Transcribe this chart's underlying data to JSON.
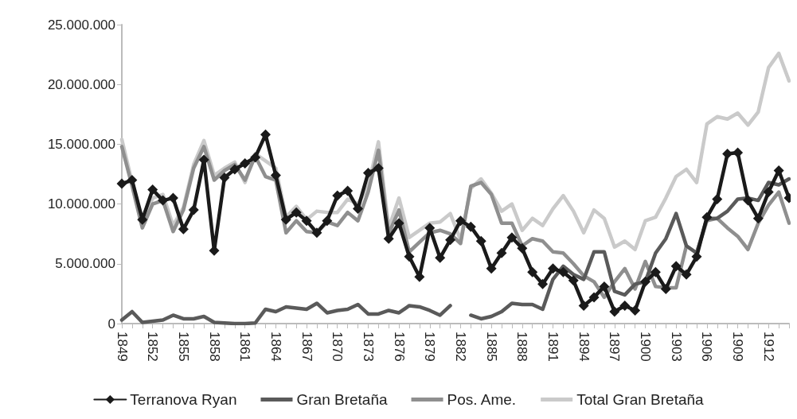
{
  "chart_data": {
    "type": "line",
    "categories": [
      "1849",
      null,
      null,
      "1852",
      null,
      null,
      "1855",
      null,
      null,
      "1858",
      null,
      null,
      "1861",
      null,
      null,
      "1864",
      null,
      null,
      "1867",
      null,
      null,
      "1870",
      null,
      null,
      "1873",
      null,
      null,
      "1876",
      null,
      null,
      "1879",
      null,
      null,
      "1882",
      null,
      null,
      "1885",
      null,
      null,
      "1888",
      null,
      null,
      "1891",
      null,
      null,
      "1894",
      null,
      null,
      "1897",
      null,
      null,
      "1900",
      null,
      null,
      "1903",
      null,
      null,
      "1906",
      null,
      null,
      "1909",
      null,
      null,
      "1912",
      null,
      null
    ],
    "ylim": [
      0,
      25000000
    ],
    "yticks": [
      0,
      {
        "value": 5000000,
        "label": "5.000.000"
      },
      {
        "value": 10000000,
        "label": "10.000.000"
      },
      {
        "value": 15000000,
        "label": "15.000.000"
      },
      {
        "value": 20000000,
        "label": "20.000.000"
      },
      {
        "value": 25000000,
        "label": "25.000.000"
      }
    ],
    "grid": false,
    "legend": "bottom",
    "line_style": "solid",
    "series": [
      {
        "name": "Terranova Ryan",
        "color": "#1a1a1a",
        "marker": "diamond",
        "values": [
          11700000,
          12000000,
          8700000,
          11200000,
          10300000,
          10500000,
          7900000,
          9500000,
          13700000,
          6100000,
          12200000,
          12900000,
          13400000,
          13900000,
          15800000,
          12400000,
          8700000,
          9300000,
          8600000,
          7600000,
          8600000,
          10700000,
          11100000,
          9600000,
          12600000,
          13000000,
          7100000,
          8400000,
          5600000,
          3900000,
          8000000,
          5500000,
          7000000,
          8600000,
          8100000,
          6900000,
          4600000,
          5900000,
          7200000,
          6300000,
          4300000,
          3300000,
          4600000,
          4300000,
          3600000,
          1500000,
          2200000,
          3100000,
          1000000,
          1500000,
          1100000,
          3500000,
          4300000,
          2900000,
          4800000,
          4100000,
          5600000,
          8900000,
          10400000,
          14200000,
          14300000,
          10300000,
          8800000,
          11000000,
          12800000,
          10500000
        ]
      },
      {
        "name": "Gran Bretaña",
        "color": "#5a5a5a",
        "marker": "none",
        "values": [
          300000,
          1000000,
          100000,
          200000,
          300000,
          700000,
          400000,
          400000,
          600000,
          100000,
          50000,
          0,
          0,
          50000,
          1200000,
          1000000,
          1400000,
          1300000,
          1200000,
          1700000,
          900000,
          1100000,
          1200000,
          1600000,
          800000,
          800000,
          1100000,
          900000,
          1500000,
          1400000,
          1100000,
          700000,
          1500000,
          null,
          700000,
          400000,
          600000,
          1000000,
          1700000,
          1600000,
          1600000,
          1200000,
          3700000,
          4800000,
          4100000,
          3700000,
          6000000,
          6000000,
          2700000,
          2400000,
          3300000,
          3500000,
          5900000,
          7100000,
          9200000,
          6500000,
          5900000,
          8800000,
          8800000,
          9400000,
          10400000,
          10500000,
          10300000,
          11800000,
          11600000,
          12100000
        ]
      },
      {
        "name": "Pos. Ame.",
        "color": "#8f8f8f",
        "marker": "none",
        "values": [
          14800000,
          11500000,
          8000000,
          10000000,
          10300000,
          7700000,
          9500000,
          13000000,
          14800000,
          12000000,
          12800000,
          13300000,
          12000000,
          14000000,
          12300000,
          12000000,
          7600000,
          8600000,
          7700000,
          7600000,
          8500000,
          8200000,
          9300000,
          8600000,
          11000000,
          14500000,
          7500000,
          9500000,
          6000000,
          6800000,
          7600000,
          7800000,
          7500000,
          6700000,
          11500000,
          11800000,
          10800000,
          8400000,
          8400000,
          6500000,
          7100000,
          6900000,
          6000000,
          5900000,
          5000000,
          4000000,
          3500000,
          2200000,
          3500000,
          4600000,
          2900000,
          5200000,
          3100000,
          3000000,
          3000000,
          6500000,
          5900000,
          8600000,
          8800000,
          8000000,
          7300000,
          6200000,
          8400000,
          9900000,
          11000000,
          8400000
        ]
      },
      {
        "name": "Total Gran Bretaña",
        "color": "#cacaca",
        "marker": "none",
        "values": [
          15400000,
          11800000,
          8200000,
          10500000,
          10800000,
          8200000,
          9700000,
          13300000,
          15300000,
          12400000,
          13000000,
          13500000,
          11800000,
          14200000,
          13600000,
          13000000,
          8900000,
          9800000,
          8700000,
          9400000,
          9300000,
          9300000,
          10400000,
          10000000,
          11500000,
          15200000,
          8000000,
          10500000,
          7200000,
          7800000,
          8400000,
          8500000,
          9200000,
          7000000,
          11300000,
          12100000,
          10900000,
          9400000,
          10000000,
          7800000,
          8800000,
          8200000,
          9600000,
          10700000,
          9400000,
          7600000,
          9500000,
          8800000,
          6400000,
          6900000,
          6200000,
          8600000,
          8900000,
          10500000,
          12300000,
          12900000,
          11800000,
          16700000,
          17300000,
          17100000,
          17600000,
          16600000,
          17700000,
          21400000,
          22600000,
          20300000
        ]
      }
    ]
  }
}
